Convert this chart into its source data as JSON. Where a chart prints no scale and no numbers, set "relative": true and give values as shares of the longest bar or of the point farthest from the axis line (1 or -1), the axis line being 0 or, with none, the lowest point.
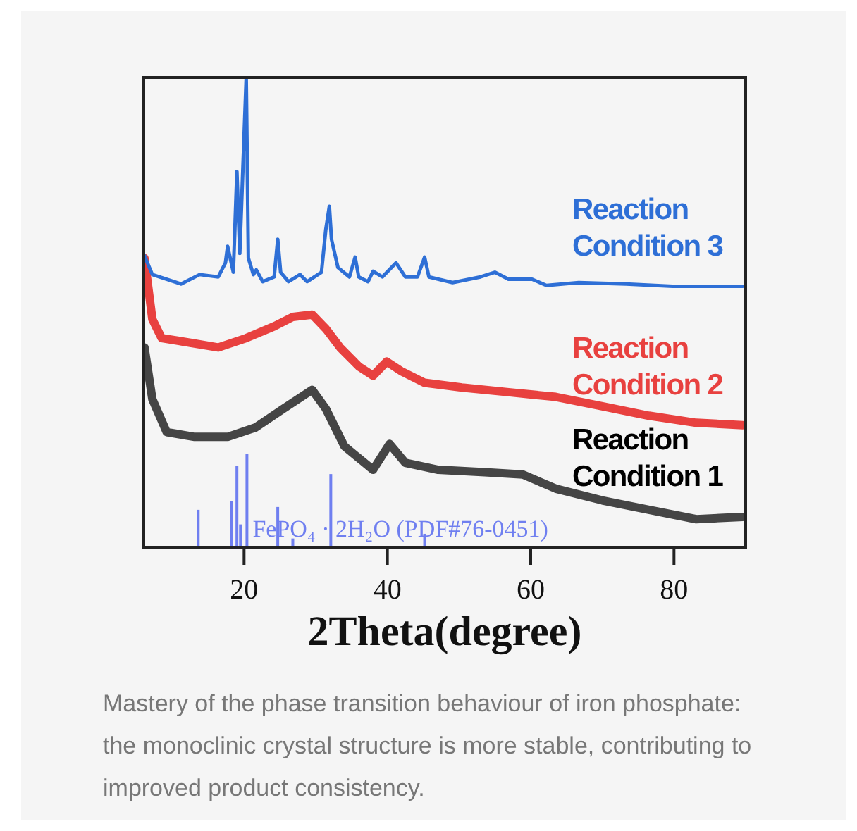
{
  "chart_data": {
    "type": "line",
    "relative": true,
    "xlabel": "2Theta(degree)",
    "xlim": [
      6,
      90
    ],
    "xticks": [
      20,
      40,
      60,
      80
    ],
    "grid": false,
    "legend": false,
    "marker": "none",
    "line_style": "solid",
    "series": [
      {
        "name": "Reaction Condition 1",
        "color": "#454545",
        "x": [
          6.1,
          7.2,
          9.2,
          13.1,
          17.7,
          21.6,
          25.5,
          29.5,
          31.4,
          34.0,
          38.0,
          40.3,
          42.5,
          47.1,
          53.6,
          58.9,
          63.5,
          70.0,
          76.5,
          83.1,
          89.6
        ],
        "values": [
          0.426,
          0.316,
          0.246,
          0.236,
          0.236,
          0.256,
          0.296,
          0.336,
          0.296,
          0.216,
          0.166,
          0.221,
          0.181,
          0.166,
          0.161,
          0.156,
          0.126,
          0.101,
          0.081,
          0.061,
          0.066
        ]
      },
      {
        "name": "Reaction Condition 2",
        "color": "#e8413f",
        "x": [
          6.1,
          7.2,
          8.5,
          12.5,
          16.4,
          20.3,
          24.2,
          26.8,
          29.5,
          31.4,
          33.4,
          36.0,
          38.0,
          39.9,
          41.9,
          45.2,
          50.4,
          56.9,
          63.5,
          70.0,
          76.5,
          83.1,
          89.6
        ],
        "values": [
          0.616,
          0.486,
          0.446,
          0.436,
          0.426,
          0.446,
          0.471,
          0.491,
          0.496,
          0.466,
          0.426,
          0.386,
          0.366,
          0.396,
          0.376,
          0.351,
          0.341,
          0.331,
          0.321,
          0.301,
          0.281,
          0.266,
          0.261
        ]
      },
      {
        "name": "Reaction Condition 3",
        "color": "#2e6fd6",
        "x": [
          6.1,
          7.2,
          11.2,
          13.8,
          16.4,
          17.4,
          17.7,
          18.5,
          19.0,
          19.4,
          20.3,
          20.6,
          21.3,
          21.7,
          22.6,
          24.2,
          24.7,
          25.1,
          26.2,
          27.8,
          28.8,
          30.8,
          31.4,
          31.9,
          32.2,
          33.1,
          34.7,
          35.5,
          36.0,
          37.3,
          38.0,
          39.3,
          41.2,
          42.5,
          44.2,
          45.2,
          45.8,
          49.1,
          53.0,
          55.0,
          56.9,
          60.2,
          62.2,
          66.7,
          73.3,
          79.8,
          89.6
        ],
        "values": [
          0.621,
          0.581,
          0.561,
          0.581,
          0.576,
          0.606,
          0.641,
          0.586,
          0.8,
          0.626,
          1.0,
          0.616,
          0.581,
          0.591,
          0.566,
          0.576,
          0.656,
          0.586,
          0.566,
          0.581,
          0.566,
          0.586,
          0.676,
          0.726,
          0.656,
          0.596,
          0.576,
          0.618,
          0.576,
          0.566,
          0.588,
          0.576,
          0.606,
          0.576,
          0.576,
          0.618,
          0.576,
          0.564,
          0.576,
          0.586,
          0.571,
          0.571,
          0.558,
          0.564,
          0.561,
          0.556,
          0.556
        ]
      },
      {
        "name": "FePO₄ · 2H₂O (PDF#76-0451)",
        "type": "bar",
        "color": "#6f7ff0",
        "x": [
          13.6,
          18.2,
          19.0,
          19.5,
          20.4,
          24.7,
          26.8,
          32.1,
          45.2
        ],
        "values": [
          0.081,
          0.1,
          0.174,
          0.05,
          0.2,
          0.087,
          0.02,
          0.157,
          0.03
        ]
      }
    ],
    "annotations": [
      "Mastery of the phase transition behaviour of iron phosphate: the monoclinic crystal structure is more stable, contributing to improved product consistency."
    ]
  }
}
